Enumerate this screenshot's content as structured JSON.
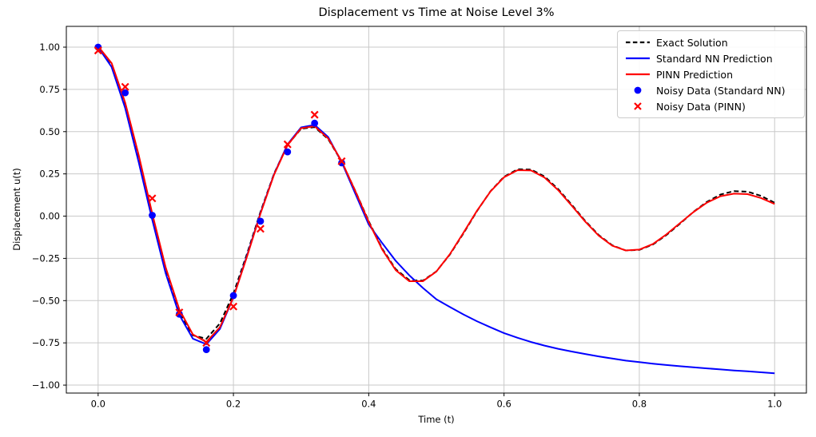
{
  "colors": {
    "exact": "#000000",
    "standard_nn": "#0000ff",
    "pinn": "#ff0000",
    "grid": "#c9c9c9",
    "spine": "#000000",
    "background": "#ffffff"
  },
  "legend": {
    "position": "upper right",
    "items": [
      {
        "label": "Exact Solution",
        "icon": "dashed-line",
        "color": "#000000"
      },
      {
        "label": "Standard NN Prediction",
        "icon": "line",
        "color": "#0000ff"
      },
      {
        "label": "PINN Prediction",
        "icon": "line",
        "color": "#ff0000"
      },
      {
        "label": "Noisy Data (Standard NN)",
        "icon": "dot",
        "color": "#0000ff"
      },
      {
        "label": "Noisy Data (PINN)",
        "icon": "x",
        "color": "#ff0000"
      }
    ]
  },
  "chart_data": {
    "type": "line",
    "title": "Displacement vs Time at Noise Level 3%",
    "xlabel": "Time (t)",
    "ylabel": "Displacement u(t)",
    "xlim": [
      -0.047,
      1.047
    ],
    "ylim": [
      -1.047,
      1.123
    ],
    "grid": true,
    "legend_position": "upper right",
    "x_ticks": [
      0.0,
      0.2,
      0.4,
      0.6,
      0.8,
      1.0
    ],
    "x_tick_labels": [
      "0.0",
      "0.2",
      "0.4",
      "0.6",
      "0.8",
      "1.0"
    ],
    "y_ticks": [
      1.0,
      0.75,
      0.5,
      0.25,
      0.0,
      -0.25,
      -0.5,
      -0.75,
      -1.0
    ],
    "y_tick_labels": [
      "1.00",
      "0.75",
      "0.50",
      "0.25",
      "0.00",
      "−0.25",
      "−0.50",
      "−0.75",
      "−1.00"
    ],
    "x": [
      0.0,
      0.02,
      0.04,
      0.06,
      0.08,
      0.1,
      0.12,
      0.14,
      0.16,
      0.18,
      0.2,
      0.22,
      0.24,
      0.26,
      0.28,
      0.3,
      0.32,
      0.34,
      0.36,
      0.38,
      0.4,
      0.42,
      0.44,
      0.46,
      0.48,
      0.5,
      0.52,
      0.54,
      0.56,
      0.58,
      0.6,
      0.62,
      0.64,
      0.66,
      0.68,
      0.7,
      0.72,
      0.74,
      0.76,
      0.78,
      0.8,
      0.82,
      0.84,
      0.86,
      0.88,
      0.9,
      0.92,
      0.94,
      0.96,
      0.98,
      1.0
    ],
    "series": [
      {
        "name": "Exact Solution",
        "color": "#000000",
        "style": "dashed",
        "width": 2,
        "values": [
          1.0,
          0.886,
          0.648,
          0.331,
          -0.011,
          -0.326,
          -0.568,
          -0.705,
          -0.726,
          -0.635,
          -0.458,
          -0.224,
          0.025,
          0.251,
          0.422,
          0.517,
          0.527,
          0.456,
          0.323,
          0.151,
          -0.03,
          -0.193,
          -0.314,
          -0.379,
          -0.382,
          -0.327,
          -0.227,
          -0.102,
          0.03,
          0.147,
          0.233,
          0.277,
          0.276,
          0.234,
          0.16,
          0.068,
          -0.028,
          -0.112,
          -0.173,
          -0.203,
          -0.2,
          -0.168,
          -0.112,
          -0.045,
          0.025,
          0.085,
          0.128,
          0.148,
          0.145,
          0.12,
          0.079
        ]
      },
      {
        "name": "Standard NN Prediction",
        "color": "#0000ff",
        "style": "solid",
        "width": 2,
        "values": [
          1.0,
          0.882,
          0.64,
          0.318,
          -0.022,
          -0.34,
          -0.585,
          -0.725,
          -0.758,
          -0.668,
          -0.48,
          -0.235,
          0.018,
          0.248,
          0.425,
          0.525,
          0.54,
          0.468,
          0.32,
          0.135,
          -0.05,
          -0.16,
          -0.265,
          -0.35,
          -0.425,
          -0.492,
          -0.538,
          -0.582,
          -0.622,
          -0.658,
          -0.692,
          -0.72,
          -0.745,
          -0.766,
          -0.785,
          -0.801,
          -0.816,
          -0.83,
          -0.843,
          -0.855,
          -0.864,
          -0.873,
          -0.881,
          -0.888,
          -0.895,
          -0.901,
          -0.907,
          -0.913,
          -0.918,
          -0.924,
          -0.93
        ]
      },
      {
        "name": "PINN Prediction",
        "color": "#ff0000",
        "style": "solid",
        "width": 2,
        "values": [
          1.005,
          0.905,
          0.672,
          0.36,
          0.015,
          -0.305,
          -0.552,
          -0.7,
          -0.745,
          -0.658,
          -0.48,
          -0.24,
          0.015,
          0.245,
          0.42,
          0.52,
          0.532,
          0.46,
          0.325,
          0.15,
          -0.035,
          -0.198,
          -0.32,
          -0.385,
          -0.385,
          -0.328,
          -0.225,
          -0.098,
          0.032,
          0.146,
          0.23,
          0.272,
          0.27,
          0.228,
          0.154,
          0.062,
          -0.032,
          -0.115,
          -0.175,
          -0.203,
          -0.198,
          -0.165,
          -0.108,
          -0.042,
          0.024,
          0.08,
          0.118,
          0.133,
          0.13,
          0.107,
          0.072
        ]
      }
    ],
    "scatter": [
      {
        "name": "Noisy Data (Standard NN)",
        "marker": "circle",
        "color": "#0000ff",
        "x": [
          0.0,
          0.04,
          0.08,
          0.12,
          0.16,
          0.2,
          0.24,
          0.28,
          0.32,
          0.36
        ],
        "y": [
          1.0,
          0.73,
          0.005,
          -0.58,
          -0.79,
          -0.47,
          -0.03,
          0.38,
          0.55,
          0.315
        ]
      },
      {
        "name": "Noisy Data (PINN)",
        "marker": "x",
        "color": "#ff0000",
        "x": [
          0.0,
          0.04,
          0.08,
          0.12,
          0.16,
          0.2,
          0.24,
          0.28,
          0.32,
          0.36
        ],
        "y": [
          0.98,
          0.765,
          0.105,
          -0.57,
          -0.75,
          -0.535,
          -0.075,
          0.425,
          0.6,
          0.325
        ]
      }
    ]
  }
}
